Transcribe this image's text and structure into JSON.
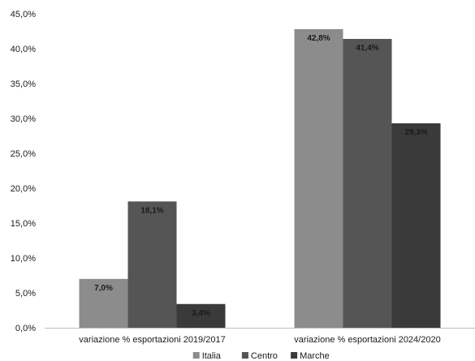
{
  "chart_data": {
    "type": "bar",
    "categories": [
      "variazione % esportazioni 2019/2017",
      "variazione % esportazioni 2024/2020"
    ],
    "series": [
      {
        "name": "Italia",
        "color": "#8c8c8c",
        "values": [
          7.0,
          42.8
        ],
        "labels": [
          "7,0%",
          "42,8%"
        ]
      },
      {
        "name": "Centro",
        "color": "#555555",
        "values": [
          18.1,
          41.4
        ],
        "labels": [
          "18,1%",
          "41,4%"
        ]
      },
      {
        "name": "Marche",
        "color": "#3a3a3a",
        "values": [
          3.4,
          29.3
        ],
        "labels": [
          "3,4%",
          "29,3%"
        ]
      }
    ],
    "ylim": [
      0,
      45
    ],
    "yticks": [
      0,
      5,
      10,
      15,
      20,
      25,
      30,
      35,
      40,
      45
    ],
    "ytick_labels": [
      "0,0%",
      "5,0%",
      "10,0%",
      "15,0%",
      "20,0%",
      "25,0%",
      "30,0%",
      "35,0%",
      "40,0%",
      "45,0%"
    ],
    "grid": false,
    "legend": "bottom"
  }
}
